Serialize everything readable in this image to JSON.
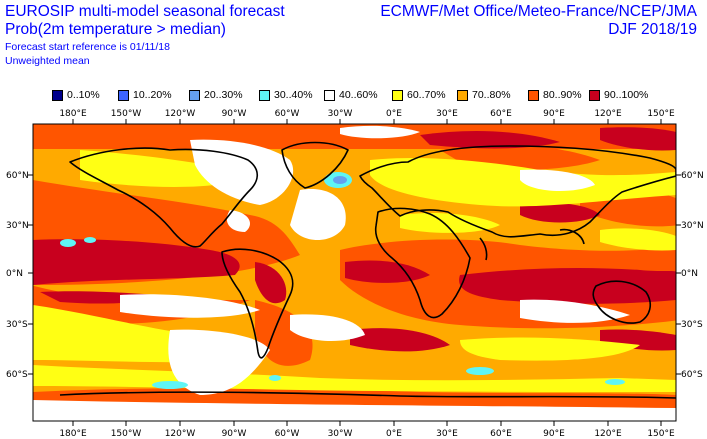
{
  "header": {
    "title_line1": "EUROSIP multi-model seasonal forecast",
    "title_line2": "Prob(2m temperature > median)",
    "forecast_start": "Forecast start reference is 01/11/18",
    "weighting": "Unweighted mean",
    "centres": "ECMWF/Met Office/Meteo-France/NCEP/JMA",
    "season": "DJF 2018/19"
  },
  "legend": [
    {
      "label": "0..10%",
      "color": "#00008c"
    },
    {
      "label": "10..20%",
      "color": "#3c64ff"
    },
    {
      "label": "20..30%",
      "color": "#64a0f0"
    },
    {
      "label": "30..40%",
      "color": "#5ff5f5"
    },
    {
      "label": "40..60%",
      "color": "#ffffff"
    },
    {
      "label": "60..70%",
      "color": "#ffff14"
    },
    {
      "label": "70..80%",
      "color": "#ffaa00"
    },
    {
      "label": "80..90%",
      "color": "#ff5500"
    },
    {
      "label": "90..100%",
      "color": "#c8001e"
    }
  ],
  "axes": {
    "lon_labels": [
      "180°E",
      "150°W",
      "120°W",
      "90°W",
      "60°W",
      "30°W",
      "0°E",
      "30°E",
      "60°E",
      "90°E",
      "120°E",
      "150°E"
    ],
    "lat_labels": [
      "60°N",
      "30°N",
      "0°N",
      "30°S",
      "60°S"
    ]
  }
}
